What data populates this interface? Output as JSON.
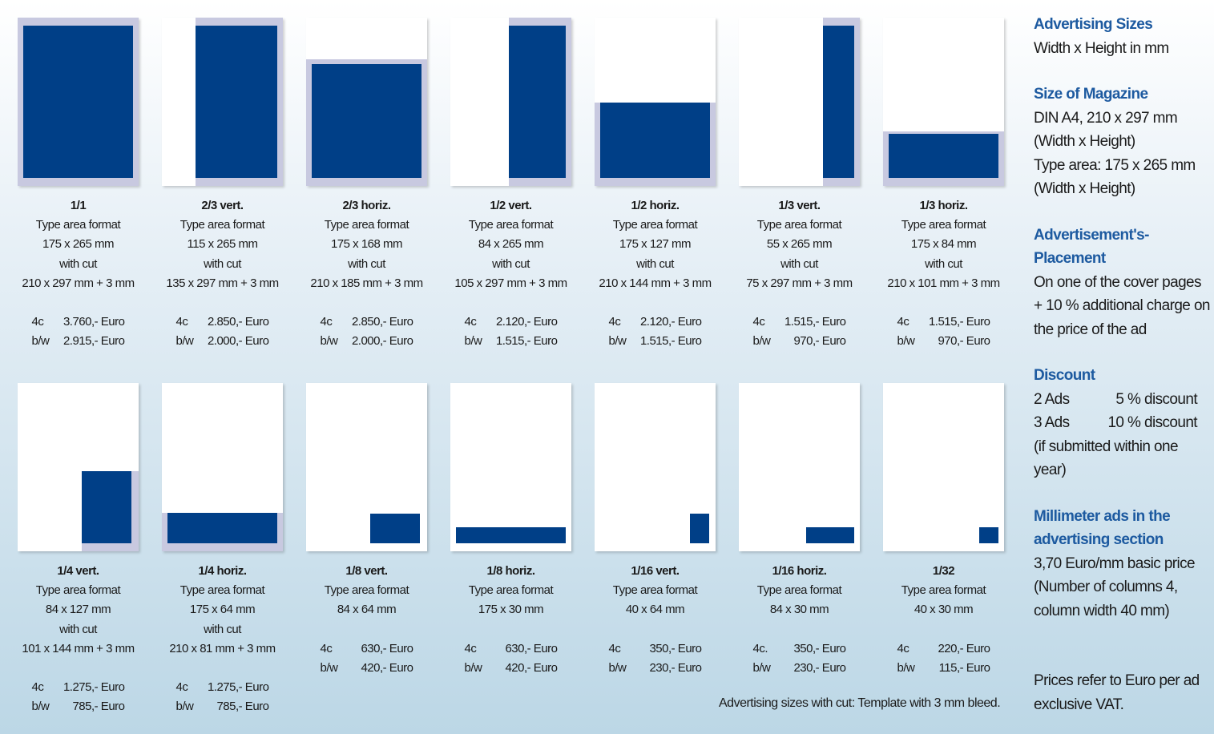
{
  "sidebar": {
    "advertising_sizes": {
      "heading": "Advertising Sizes",
      "text": "Width x Height in mm"
    },
    "magazine": {
      "heading": "Size of Magazine",
      "lines": [
        "DIN A4, 210 x 297 mm",
        "(Width x Height)",
        "Type area: 175 x 265 mm",
        "(Width x Height)"
      ]
    },
    "placement": {
      "heading_lines": [
        "Advertisement's-",
        "Placement"
      ],
      "lines": [
        "On one of the cover pages",
        "+ 10 % additional charge on",
        "the price of the ad"
      ]
    },
    "discount": {
      "heading": "Discount",
      "rows": [
        {
          "left": "2 Ads",
          "right": "5 % discount"
        },
        {
          "left": "3 Ads",
          "right": "10 % discount"
        }
      ],
      "lines": [
        "(if submitted within one",
        "year)"
      ]
    },
    "millimeter": {
      "heading_lines": [
        "Millimeter ads in the",
        "advertising section"
      ],
      "lines": [
        "3,70 Euro/mm basic price",
        "(Number of columns 4,",
        "column width 40 mm)"
      ]
    },
    "prices_note": [
      "Prices refer to Euro per ad",
      "exclusive VAT."
    ]
  },
  "footnote": "Advertising sizes with cut: Template with 3 mm bleed.",
  "colors": {
    "ad_fill": "#003f87",
    "bleed": "#c8c9e0",
    "heading": "#1d5aa0"
  },
  "ads": [
    {
      "title": "1/1",
      "lines": [
        "Type area format",
        "175 x 265 mm",
        "with cut",
        "210 x 297 mm + 3 mm"
      ],
      "prices": [
        {
          "label": "4c",
          "value": "3.760,- Euro"
        },
        {
          "label": "b/w",
          "value": "2.915,- Euro"
        }
      ]
    },
    {
      "title": "2/3 vert.",
      "lines": [
        "Type area format",
        "115 x 265 mm",
        "with cut",
        "135 x 297 mm + 3 mm"
      ],
      "prices": [
        {
          "label": "4c",
          "value": "2.850,- Euro"
        },
        {
          "label": "b/w",
          "value": "2.000,- Euro"
        }
      ]
    },
    {
      "title": "2/3 horiz.",
      "lines": [
        "Type area format",
        "175 x 168 mm",
        "with cut",
        "210 x 185 mm + 3 mm"
      ],
      "prices": [
        {
          "label": "4c",
          "value": "2.850,- Euro"
        },
        {
          "label": "b/w",
          "value": "2.000,- Euro"
        }
      ]
    },
    {
      "title": "1/2 vert.",
      "lines": [
        "Type area format",
        "84 x 265 mm",
        "with cut",
        "105 x 297 mm + 3 mm"
      ],
      "prices": [
        {
          "label": "4c",
          "value": "2.120,- Euro"
        },
        {
          "label": "b/w",
          "value": "1.515,- Euro"
        }
      ]
    },
    {
      "title": "1/2 horiz.",
      "lines": [
        "Type area format",
        "175 x 127 mm",
        "with cut",
        "210 x 144 mm + 3 mm"
      ],
      "prices": [
        {
          "label": "4c",
          "value": "2.120,- Euro"
        },
        {
          "label": "b/w",
          "value": "1.515,- Euro"
        }
      ]
    },
    {
      "title": "1/3 vert.",
      "lines": [
        "Type area format",
        "55 x 265 mm",
        "with cut",
        "75 x 297 mm + 3 mm"
      ],
      "prices": [
        {
          "label": "4c",
          "value": "1.515,- Euro"
        },
        {
          "label": "b/w",
          "value": "970,- Euro"
        }
      ]
    },
    {
      "title": "1/3 horiz.",
      "lines": [
        "Type area format",
        "175 x 84 mm",
        "with cut",
        "210 x 101 mm + 3 mm"
      ],
      "prices": [
        {
          "label": "4c",
          "value": "1.515,- Euro"
        },
        {
          "label": "b/w",
          "value": "970,- Euro"
        }
      ]
    },
    {
      "title": "1/4 vert.",
      "lines": [
        "Type area format",
        "84 x 127 mm",
        "with cut",
        "101 x 144 mm + 3 mm"
      ],
      "prices": [
        {
          "label": "4c",
          "value": "1.275,- Euro"
        },
        {
          "label": "b/w",
          "value": "785,- Euro"
        }
      ]
    },
    {
      "title": "1/4 horiz.",
      "lines": [
        "Type area format",
        "175 x 64 mm",
        "with cut",
        "210 x 81 mm + 3 mm"
      ],
      "prices": [
        {
          "label": "4c",
          "value": "1.275,- Euro"
        },
        {
          "label": "b/w",
          "value": "785,- Euro"
        }
      ]
    },
    {
      "title": "1/8 vert.",
      "lines": [
        "Type area format",
        "84 x 64 mm"
      ],
      "prices": [
        {
          "label": "4c",
          "value": "630,- Euro"
        },
        {
          "label": "b/w",
          "value": "420,- Euro"
        }
      ]
    },
    {
      "title": "1/8 horiz.",
      "lines": [
        "Type area format",
        "175 x 30 mm"
      ],
      "prices": [
        {
          "label": "4c",
          "value": "630,- Euro"
        },
        {
          "label": "b/w",
          "value": "420,- Euro"
        }
      ]
    },
    {
      "title": "1/16 vert.",
      "lines": [
        "Type area format",
        "40 x 64 mm"
      ],
      "prices": [
        {
          "label": "4c",
          "value": "350,- Euro"
        },
        {
          "label": "b/w",
          "value": "230,- Euro"
        }
      ]
    },
    {
      "title": "1/16 horiz.",
      "lines": [
        "Type area format",
        "84 x 30 mm"
      ],
      "prices": [
        {
          "label": "4c.",
          "value": "350,- Euro"
        },
        {
          "label": "b/w",
          "value": "230,- Euro"
        }
      ]
    },
    {
      "title": "1/32",
      "lines": [
        "Type area format",
        "40 x 30 mm"
      ],
      "prices": [
        {
          "label": "4c",
          "value": "220,- Euro"
        },
        {
          "label": "b/w",
          "value": "115,- Euro"
        }
      ]
    }
  ]
}
